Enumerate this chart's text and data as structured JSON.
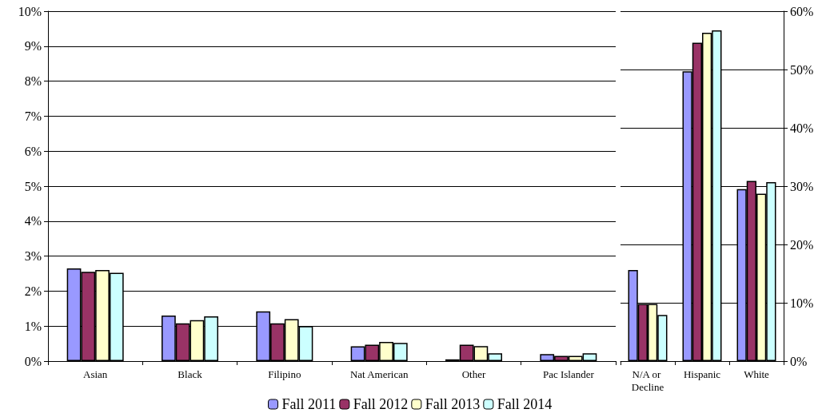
{
  "chart_data": [
    {
      "type": "bar",
      "categories": [
        "Asian",
        "Black",
        "Filipino",
        "Nat American",
        "Other",
        "Pac Islander"
      ],
      "series": [
        {
          "name": "Fall 2011",
          "color": "#9999ff",
          "values": [
            2.65,
            1.3,
            1.42,
            0.42,
            0.05,
            0.2
          ]
        },
        {
          "name": "Fall 2012",
          "color": "#993366",
          "values": [
            2.55,
            1.08,
            1.08,
            0.47,
            0.47,
            0.15
          ]
        },
        {
          "name": "Fall 2013",
          "color": "#ffffcc",
          "values": [
            2.6,
            1.17,
            1.2,
            0.55,
            0.43,
            0.15
          ]
        },
        {
          "name": "Fall 2014",
          "color": "#ccffff",
          "values": [
            2.52,
            1.28,
            1.0,
            0.52,
            0.22,
            0.22
          ]
        }
      ],
      "ylim": [
        0,
        10
      ],
      "yticks": [
        {
          "value": 0,
          "label": "0%"
        },
        {
          "value": 1,
          "label": "1%"
        },
        {
          "value": 2,
          "label": "2%"
        },
        {
          "value": 3,
          "label": "3%"
        },
        {
          "value": 4,
          "label": "4%"
        },
        {
          "value": 5,
          "label": "5%"
        },
        {
          "value": 6,
          "label": "6%"
        },
        {
          "value": 7,
          "label": "7%"
        },
        {
          "value": 8,
          "label": "8%"
        },
        {
          "value": 9,
          "label": "9%"
        },
        {
          "value": 10,
          "label": "10%"
        }
      ],
      "grid": "y",
      "legend": "bottom"
    },
    {
      "type": "bar",
      "categories": [
        "N/A or Decline",
        "Hispanic",
        "White"
      ],
      "series": [
        {
          "color": "#9999ff",
          "values": [
            15.6,
            49.7,
            29.5
          ],
          "axis": "y2"
        },
        {
          "color": "#993366",
          "values": [
            9.8,
            54.6,
            30.9
          ],
          "axis": "y2"
        },
        {
          "color": "#ffffcc",
          "values": [
            9.8,
            56.3,
            28.7
          ],
          "axis": "y2"
        },
        {
          "color": "#ccffff",
          "values": [
            7.9,
            56.7,
            30.7
          ],
          "axis": "y2"
        }
      ],
      "y2lim": [
        0,
        60
      ],
      "y2ticks": [
        {
          "value": 0,
          "label": "0%"
        },
        {
          "value": 10,
          "label": "10%"
        },
        {
          "value": 20,
          "label": "20%"
        },
        {
          "value": 30,
          "label": "30%"
        },
        {
          "value": 40,
          "label": "40%"
        },
        {
          "value": 50,
          "label": "50%"
        },
        {
          "value": 60,
          "label": "60%"
        }
      ],
      "grid": "y",
      "legend": false
    }
  ]
}
